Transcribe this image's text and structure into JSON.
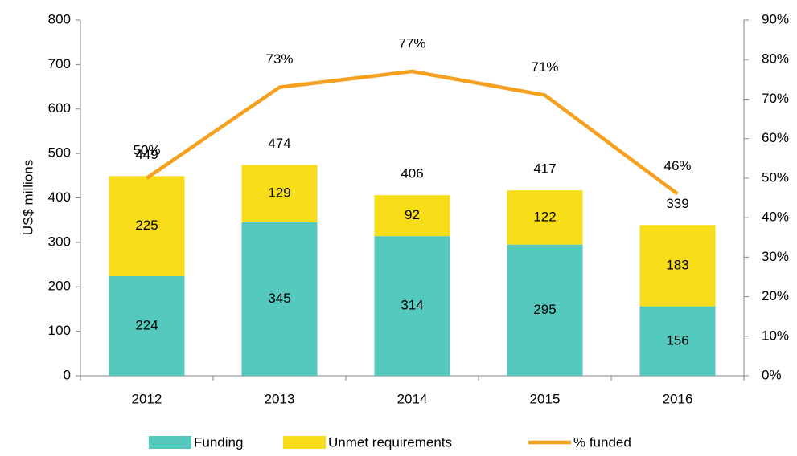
{
  "chart_data": {
    "type": "bar",
    "categories": [
      "2012",
      "2013",
      "2014",
      "2015",
      "2016"
    ],
    "series": [
      {
        "name": "Funding",
        "color": "#56c9be",
        "values": [
          224,
          345,
          314,
          295,
          156
        ]
      },
      {
        "name": "Unmet requirements",
        "color": "#f7dc1a",
        "values": [
          225,
          129,
          92,
          122,
          183
        ]
      },
      {
        "name": "% funded",
        "color": "#f5a01e",
        "axis": "y2",
        "type": "line",
        "values": [
          50,
          73,
          77,
          71,
          46
        ],
        "value_labels": [
          "50%",
          "73%",
          "77%",
          "71%",
          "46%"
        ]
      }
    ],
    "totals": [
      449,
      474,
      406,
      417,
      339
    ],
    "stacked": true,
    "ylabel": "US$ millions",
    "ylim": [
      0,
      800
    ],
    "yticks": [
      0,
      100,
      200,
      300,
      400,
      500,
      600,
      700,
      800
    ],
    "y2lim": [
      0,
      90
    ],
    "y2ticks": [
      {
        "value": 0,
        "label": "0%"
      },
      {
        "value": 10,
        "label": "10%"
      },
      {
        "value": 20,
        "label": "20%"
      },
      {
        "value": 30,
        "label": "30%"
      },
      {
        "value": 40,
        "label": "40%"
      },
      {
        "value": 50,
        "label": "50%"
      },
      {
        "value": 60,
        "label": "60%"
      },
      {
        "value": 70,
        "label": "70%"
      },
      {
        "value": 80,
        "label": "80%"
      },
      {
        "value": 90,
        "label": "90%"
      }
    ],
    "grid": false,
    "legend": "bottom"
  }
}
